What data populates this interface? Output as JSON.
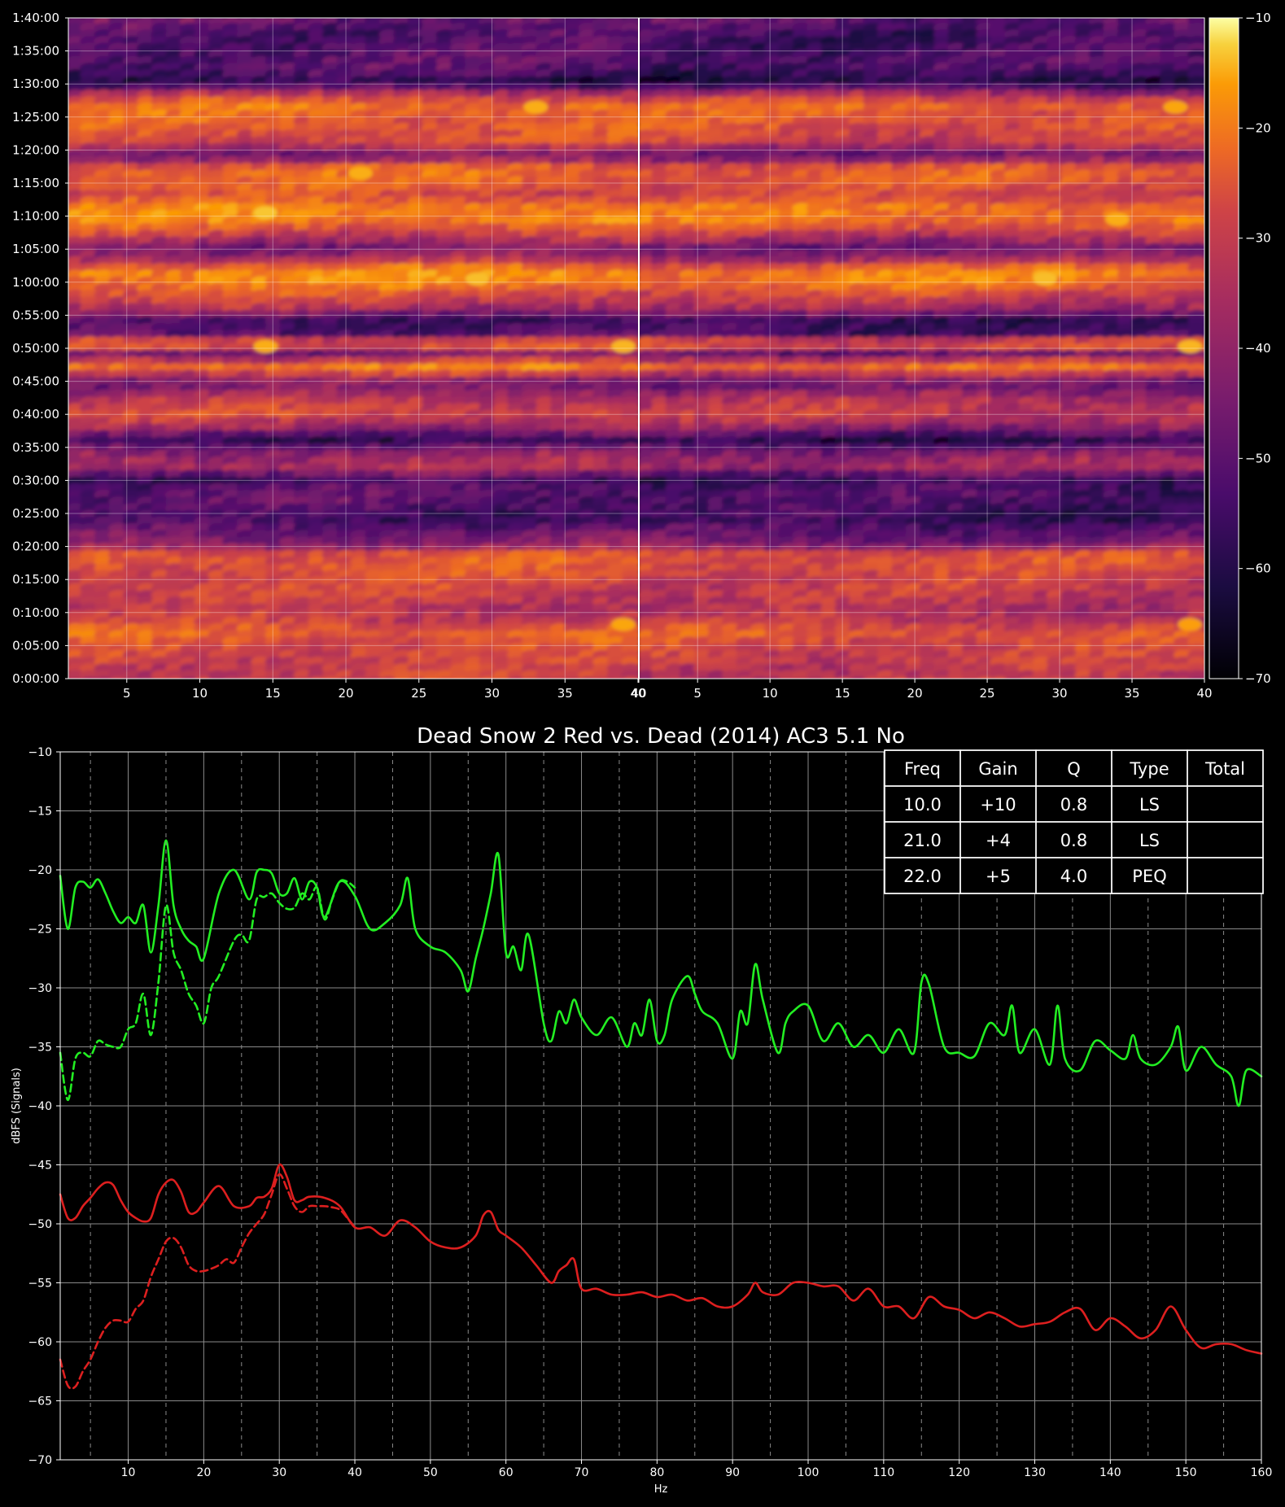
{
  "colors": {
    "background": "#000000",
    "foreground": "#ffffff",
    "grid": "#8a8a8a",
    "green_series": "#22ee22",
    "red_series": "#dd1f1f",
    "colormap": "inferno"
  },
  "chart_data": [
    {
      "type": "heatmap",
      "title": "",
      "panels": [
        {
          "name": "",
          "x_ticks": [
            "5",
            "10",
            "15",
            "20",
            "25",
            "30",
            "35",
            "40"
          ],
          "xlim": [
            1,
            40
          ]
        },
        {
          "name": "",
          "x_ticks": [
            "40",
            "5",
            "10",
            "15",
            "20",
            "25",
            "30",
            "35",
            "40"
          ],
          "xlim": [
            1,
            40
          ]
        }
      ],
      "y_ticks": [
        "0:00:00",
        "0:05:00",
        "0:10:00",
        "0:15:00",
        "0:20:00",
        "0:25:00",
        "0:30:00",
        "0:35:00",
        "0:40:00",
        "0:45:00",
        "0:50:00",
        "0:55:00",
        "1:00:00",
        "1:05:00",
        "1:10:00",
        "1:15:00",
        "1:20:00",
        "1:25:00",
        "1:30:00",
        "1:35:00",
        "1:40:00"
      ],
      "ylim_minutes": [
        0,
        100
      ],
      "colorbar": {
        "range": [
          -70,
          -10
        ],
        "ticks": [
          "−10",
          "−20",
          "−30",
          "−40",
          "−50",
          "−60",
          "−70"
        ]
      },
      "row_levels_dB": [
        {
          "t": 1,
          "db": -38
        },
        {
          "t": 3,
          "db": -36
        },
        {
          "t": 5,
          "db": -34
        },
        {
          "t": 7,
          "db": -31
        },
        {
          "t": 8.5,
          "db": -38
        },
        {
          "t": 10.5,
          "db": -40
        },
        {
          "t": 12,
          "db": -38
        },
        {
          "t": 14,
          "db": -36
        },
        {
          "t": 15.5,
          "db": -35
        },
        {
          "t": 17,
          "db": -33
        },
        {
          "t": 18.5,
          "db": -32
        },
        {
          "t": 20,
          "db": -48
        },
        {
          "t": 22,
          "db": -52
        },
        {
          "t": 24,
          "db": -58
        },
        {
          "t": 26,
          "db": -55
        },
        {
          "t": 28,
          "db": -54
        },
        {
          "t": 30,
          "db": -58
        },
        {
          "t": 32,
          "db": -41
        },
        {
          "t": 34,
          "db": -47
        },
        {
          "t": 36,
          "db": -60
        },
        {
          "t": 38,
          "db": -44
        },
        {
          "t": 40,
          "db": -36
        },
        {
          "t": 42,
          "db": -40
        },
        {
          "t": 44.5,
          "db": -52
        },
        {
          "t": 47,
          "db": -28
        },
        {
          "t": 49,
          "db": -50
        },
        {
          "t": 50.5,
          "db": -27
        },
        {
          "t": 52,
          "db": -55
        },
        {
          "t": 54,
          "db": -58
        },
        {
          "t": 56,
          "db": -42
        },
        {
          "t": 58,
          "db": -34
        },
        {
          "t": 60,
          "db": -26
        },
        {
          "t": 61.5,
          "db": -25
        },
        {
          "t": 63.5,
          "db": -44
        },
        {
          "t": 65,
          "db": -50
        },
        {
          "t": 67,
          "db": -38
        },
        {
          "t": 69,
          "db": -27
        },
        {
          "t": 71,
          "db": -26
        },
        {
          "t": 73,
          "db": -36
        },
        {
          "t": 75,
          "db": -31
        },
        {
          "t": 77,
          "db": -30
        },
        {
          "t": 79,
          "db": -52
        },
        {
          "t": 81,
          "db": -36
        },
        {
          "t": 83,
          "db": -33
        },
        {
          "t": 85,
          "db": -31
        },
        {
          "t": 86.5,
          "db": -29
        },
        {
          "t": 88,
          "db": -38
        },
        {
          "t": 90,
          "db": -62
        },
        {
          "t": 92,
          "db": -55
        },
        {
          "t": 94,
          "db": -54
        },
        {
          "t": 96,
          "db": -56
        },
        {
          "t": 98,
          "db": -55
        },
        {
          "t": 99.5,
          "db": -52
        }
      ],
      "hot_spots": [
        {
          "panel": 0,
          "x": 14.5,
          "t": 70.5,
          "db": -18
        },
        {
          "panel": 0,
          "x": 29,
          "t": 60.5,
          "db": -19
        },
        {
          "panel": 0,
          "x": 39,
          "t": 50.3,
          "db": -20
        },
        {
          "panel": 0,
          "x": 14.5,
          "t": 50.3,
          "db": -21
        },
        {
          "panel": 0,
          "x": 21,
          "t": 76.5,
          "db": -21
        },
        {
          "panel": 0,
          "x": 33,
          "t": 86.5,
          "db": -21
        },
        {
          "panel": 0,
          "x": 39,
          "t": 8.2,
          "db": -22
        },
        {
          "panel": 1,
          "x": 29,
          "t": 60.5,
          "db": -19
        },
        {
          "panel": 1,
          "x": 39,
          "t": 50.3,
          "db": -20
        },
        {
          "panel": 1,
          "x": 34,
          "t": 69.5,
          "db": -21
        },
        {
          "panel": 1,
          "x": 38,
          "t": 86.5,
          "db": -22
        },
        {
          "panel": 1,
          "x": 39,
          "t": 8.2,
          "db": -23
        }
      ]
    },
    {
      "type": "line",
      "title": "Dead Snow 2 Red vs. Dead (2014) AC3 5.1 No",
      "xlabel": "Hz",
      "ylabel": "dBFS (Signals)",
      "xlim": [
        1,
        160
      ],
      "ylim": [
        -70,
        -10
      ],
      "x_ticks": [
        10,
        20,
        30,
        40,
        50,
        60,
        70,
        80,
        90,
        100,
        110,
        120,
        130,
        140,
        150,
        160
      ],
      "x_minor_dashed": [
        5,
        15,
        25,
        35,
        45,
        55,
        65,
        75,
        85,
        95,
        105,
        115,
        125,
        135,
        145,
        155
      ],
      "y_ticks": [
        -10,
        -15,
        -20,
        -25,
        -30,
        -35,
        -40,
        -45,
        -50,
        -55,
        -60,
        -65,
        -70
      ],
      "grid": true,
      "series": [
        {
          "style": "solid",
          "color": "#22ee22",
          "x": [
            1,
            2,
            3,
            4,
            5,
            6,
            7,
            8,
            9,
            10,
            11,
            12,
            13,
            14,
            15,
            16,
            17,
            18,
            19,
            20,
            22,
            24,
            26,
            27,
            28,
            29,
            30,
            31,
            32,
            33,
            34,
            35,
            36,
            38,
            40,
            42,
            44,
            46,
            47,
            48,
            50,
            52,
            54,
            55,
            56,
            57,
            58,
            59,
            60,
            61,
            62,
            63,
            65,
            66,
            67,
            68,
            69,
            70,
            72,
            74,
            76,
            77,
            78,
            79,
            80,
            81,
            82,
            84,
            85,
            86,
            88,
            90,
            91,
            92,
            93,
            94,
            96,
            97,
            98,
            100,
            102,
            104,
            106,
            108,
            110,
            112,
            114,
            115,
            116,
            118,
            120,
            122,
            124,
            126,
            127,
            128,
            130,
            132,
            133,
            134,
            136,
            138,
            140,
            142,
            143,
            144,
            146,
            148,
            149,
            150,
            152,
            154,
            156,
            157,
            158,
            160
          ],
          "y": [
            -20.5,
            -25,
            -21.5,
            -21,
            -21.5,
            -20.8,
            -22,
            -23.5,
            -24.5,
            -24,
            -24.5,
            -23,
            -27,
            -23,
            -17.5,
            -23,
            -25,
            -26,
            -26.5,
            -27.5,
            -22,
            -20,
            -22.5,
            -20.2,
            -20,
            -20.3,
            -22,
            -22,
            -20.7,
            -22.5,
            -21,
            -21.5,
            -24,
            -21,
            -22.2,
            -25,
            -24.5,
            -23,
            -20.7,
            -25,
            -26.5,
            -27,
            -28.5,
            -30.3,
            -27.5,
            -25,
            -22,
            -18.7,
            -27,
            -26.5,
            -28.5,
            -25.5,
            -33,
            -34.5,
            -32,
            -33,
            -31,
            -32.5,
            -34,
            -32.5,
            -35,
            -33,
            -34,
            -31,
            -34.5,
            -34,
            -31,
            -29,
            -30.5,
            -32,
            -33,
            -36,
            -32,
            -33,
            -28,
            -31,
            -35.5,
            -33,
            -32,
            -31.5,
            -34.5,
            -33,
            -35,
            -34,
            -35.5,
            -33.5,
            -35.5,
            -29.5,
            -29.7,
            -35,
            -35.5,
            -35.8,
            -33,
            -34,
            -31.5,
            -35.5,
            -33.5,
            -36.5,
            -31.5,
            -36,
            -37,
            -34.5,
            -35.3,
            -36,
            -34,
            -36,
            -36.5,
            -35,
            -33.3,
            -37,
            -35,
            -36.5,
            -37.5,
            -40,
            -37,
            -37.5
          ]
        },
        {
          "style": "dashed",
          "color": "#22ee22",
          "x": [
            1,
            2,
            3,
            4,
            5,
            6,
            7,
            8,
            9,
            10,
            11,
            12,
            13,
            14,
            15,
            16,
            17,
            18,
            19,
            20,
            21,
            22,
            24,
            25,
            26,
            27,
            28,
            29,
            30,
            31,
            32,
            33,
            34,
            35,
            36,
            37,
            38,
            39,
            40
          ],
          "y": [
            -35.5,
            -39.5,
            -36,
            -35.5,
            -35.8,
            -34.5,
            -34.8,
            -35,
            -35,
            -33.5,
            -33,
            -30.5,
            -34,
            -29.5,
            -23,
            -27,
            -28.5,
            -30.5,
            -31.5,
            -33,
            -30,
            -29,
            -26,
            -25.5,
            -26,
            -22.5,
            -22.3,
            -22,
            -22.8,
            -23.3,
            -23.2,
            -22,
            -22.5,
            -21.5,
            -24.2,
            -22.5,
            -21,
            -21,
            -21.5
          ]
        },
        {
          "style": "solid",
          "color": "#dd1f1f",
          "x": [
            1,
            2,
            3,
            4,
            5,
            6,
            7,
            8,
            9,
            10,
            11,
            12,
            13,
            14,
            15,
            16,
            17,
            18,
            19,
            20,
            22,
            24,
            26,
            27,
            28,
            29,
            30,
            31,
            32,
            33,
            34,
            36,
            38,
            40,
            42,
            44,
            46,
            48,
            50,
            52,
            54,
            56,
            57,
            58,
            59,
            60,
            62,
            64,
            66,
            67,
            68,
            69,
            70,
            72,
            74,
            76,
            78,
            80,
            82,
            84,
            86,
            88,
            90,
            92,
            93,
            94,
            96,
            98,
            100,
            102,
            104,
            106,
            108,
            110,
            112,
            114,
            116,
            118,
            120,
            122,
            124,
            126,
            128,
            130,
            132,
            134,
            136,
            138,
            140,
            142,
            144,
            146,
            148,
            150,
            152,
            154,
            156,
            158,
            160
          ],
          "y": [
            -47.5,
            -49.5,
            -49.5,
            -48.5,
            -47.8,
            -47,
            -46.5,
            -46.7,
            -48,
            -49,
            -49.5,
            -49.8,
            -49.5,
            -47.5,
            -46.5,
            -46.3,
            -47.3,
            -49,
            -49,
            -48.2,
            -46.8,
            -48.5,
            -48.5,
            -47.8,
            -47.7,
            -47,
            -45,
            -46,
            -48,
            -48,
            -47.7,
            -47.8,
            -48.5,
            -50.3,
            -50.3,
            -51,
            -49.7,
            -50.3,
            -51.5,
            -52,
            -52,
            -51,
            -49.3,
            -49,
            -50.5,
            -51,
            -52,
            -53.5,
            -55,
            -54,
            -53.5,
            -53,
            -55.5,
            -55.5,
            -56,
            -56,
            -55.8,
            -56.2,
            -56,
            -56.5,
            -56.3,
            -57,
            -57,
            -56,
            -55,
            -55.8,
            -56,
            -55,
            -55,
            -55.3,
            -55.3,
            -56.5,
            -55.5,
            -57,
            -57,
            -58,
            -56.2,
            -57,
            -57.3,
            -58,
            -57.5,
            -58,
            -58.7,
            -58.5,
            -58.3,
            -57.5,
            -57.2,
            -59,
            -58,
            -58.7,
            -59.7,
            -59,
            -57,
            -59,
            -60.5,
            -60.2,
            -60.2,
            -60.7,
            -61
          ]
        },
        {
          "style": "dashed",
          "color": "#dd1f1f",
          "x": [
            1,
            2,
            3,
            4,
            5,
            6,
            7,
            8,
            9,
            10,
            11,
            12,
            13,
            14,
            15,
            16,
            17,
            18,
            19,
            20,
            21,
            22,
            23,
            24,
            25,
            26,
            27,
            28,
            29,
            30,
            31,
            32,
            33,
            34,
            35,
            36,
            37,
            38,
            39,
            40
          ],
          "y": [
            -61.5,
            -63.7,
            -63.8,
            -62.5,
            -61.5,
            -60,
            -58.8,
            -58.2,
            -58.2,
            -58.3,
            -57.2,
            -56.5,
            -54.5,
            -53,
            -51.5,
            -51.2,
            -52,
            -53.5,
            -54,
            -54,
            -53.8,
            -53.5,
            -53,
            -53.3,
            -52,
            -50.8,
            -50,
            -49.2,
            -47.5,
            -45.8,
            -47,
            -48.5,
            -49,
            -48.5,
            -48.5,
            -48.5,
            -48.6,
            -48.8,
            -49.5,
            -50.3
          ]
        }
      ],
      "eq_table": {
        "headers": [
          "Freq",
          "Gain",
          "Q",
          "Type",
          "Total"
        ],
        "rows": [
          [
            "10.0",
            "+10",
            "0.8",
            "LS",
            ""
          ],
          [
            "21.0",
            "+4",
            "0.8",
            "LS",
            ""
          ],
          [
            "22.0",
            "+5",
            "4.0",
            "PEQ",
            ""
          ]
        ]
      }
    }
  ]
}
